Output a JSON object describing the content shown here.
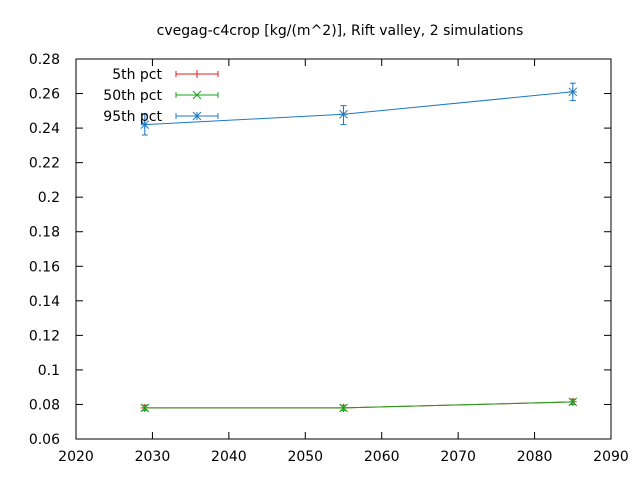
{
  "chart_data": {
    "type": "line",
    "title": "cvegag-c4crop [kg/(m^2)], Rift valley, 2 simulations",
    "xlabel": "",
    "ylabel": "",
    "xlim": [
      2020,
      2090
    ],
    "ylim": [
      0.06,
      0.28
    ],
    "xticks": [
      2020,
      2030,
      2040,
      2050,
      2060,
      2070,
      2080,
      2090
    ],
    "yticks": [
      0.06,
      0.08,
      0.1,
      0.12,
      0.14,
      0.16,
      0.18,
      0.2,
      0.22,
      0.24,
      0.26,
      0.28
    ],
    "grid": false,
    "legend_position": "top-left",
    "error_bars": true,
    "x": [
      2029,
      2055,
      2085
    ],
    "series": [
      {
        "name": "5th pct",
        "color": "#e41a1c",
        "marker": "plus",
        "values": [
          0.078,
          0.078,
          0.0815
        ],
        "err_low": [
          0.0765,
          0.0765,
          0.08
        ],
        "err_high": [
          0.0795,
          0.0795,
          0.083
        ]
      },
      {
        "name": "50th pct",
        "color": "#1ba01b",
        "marker": "cross",
        "values": [
          0.078,
          0.078,
          0.0815
        ],
        "err_low": [
          0.0765,
          0.0765,
          0.08
        ],
        "err_high": [
          0.0795,
          0.0795,
          0.083
        ]
      },
      {
        "name": "95th pct",
        "color": "#1c78c6",
        "marker": "star",
        "values": [
          0.242,
          0.248,
          0.261
        ],
        "err_low": [
          0.236,
          0.242,
          0.256
        ],
        "err_high": [
          0.248,
          0.253,
          0.266
        ]
      }
    ]
  }
}
